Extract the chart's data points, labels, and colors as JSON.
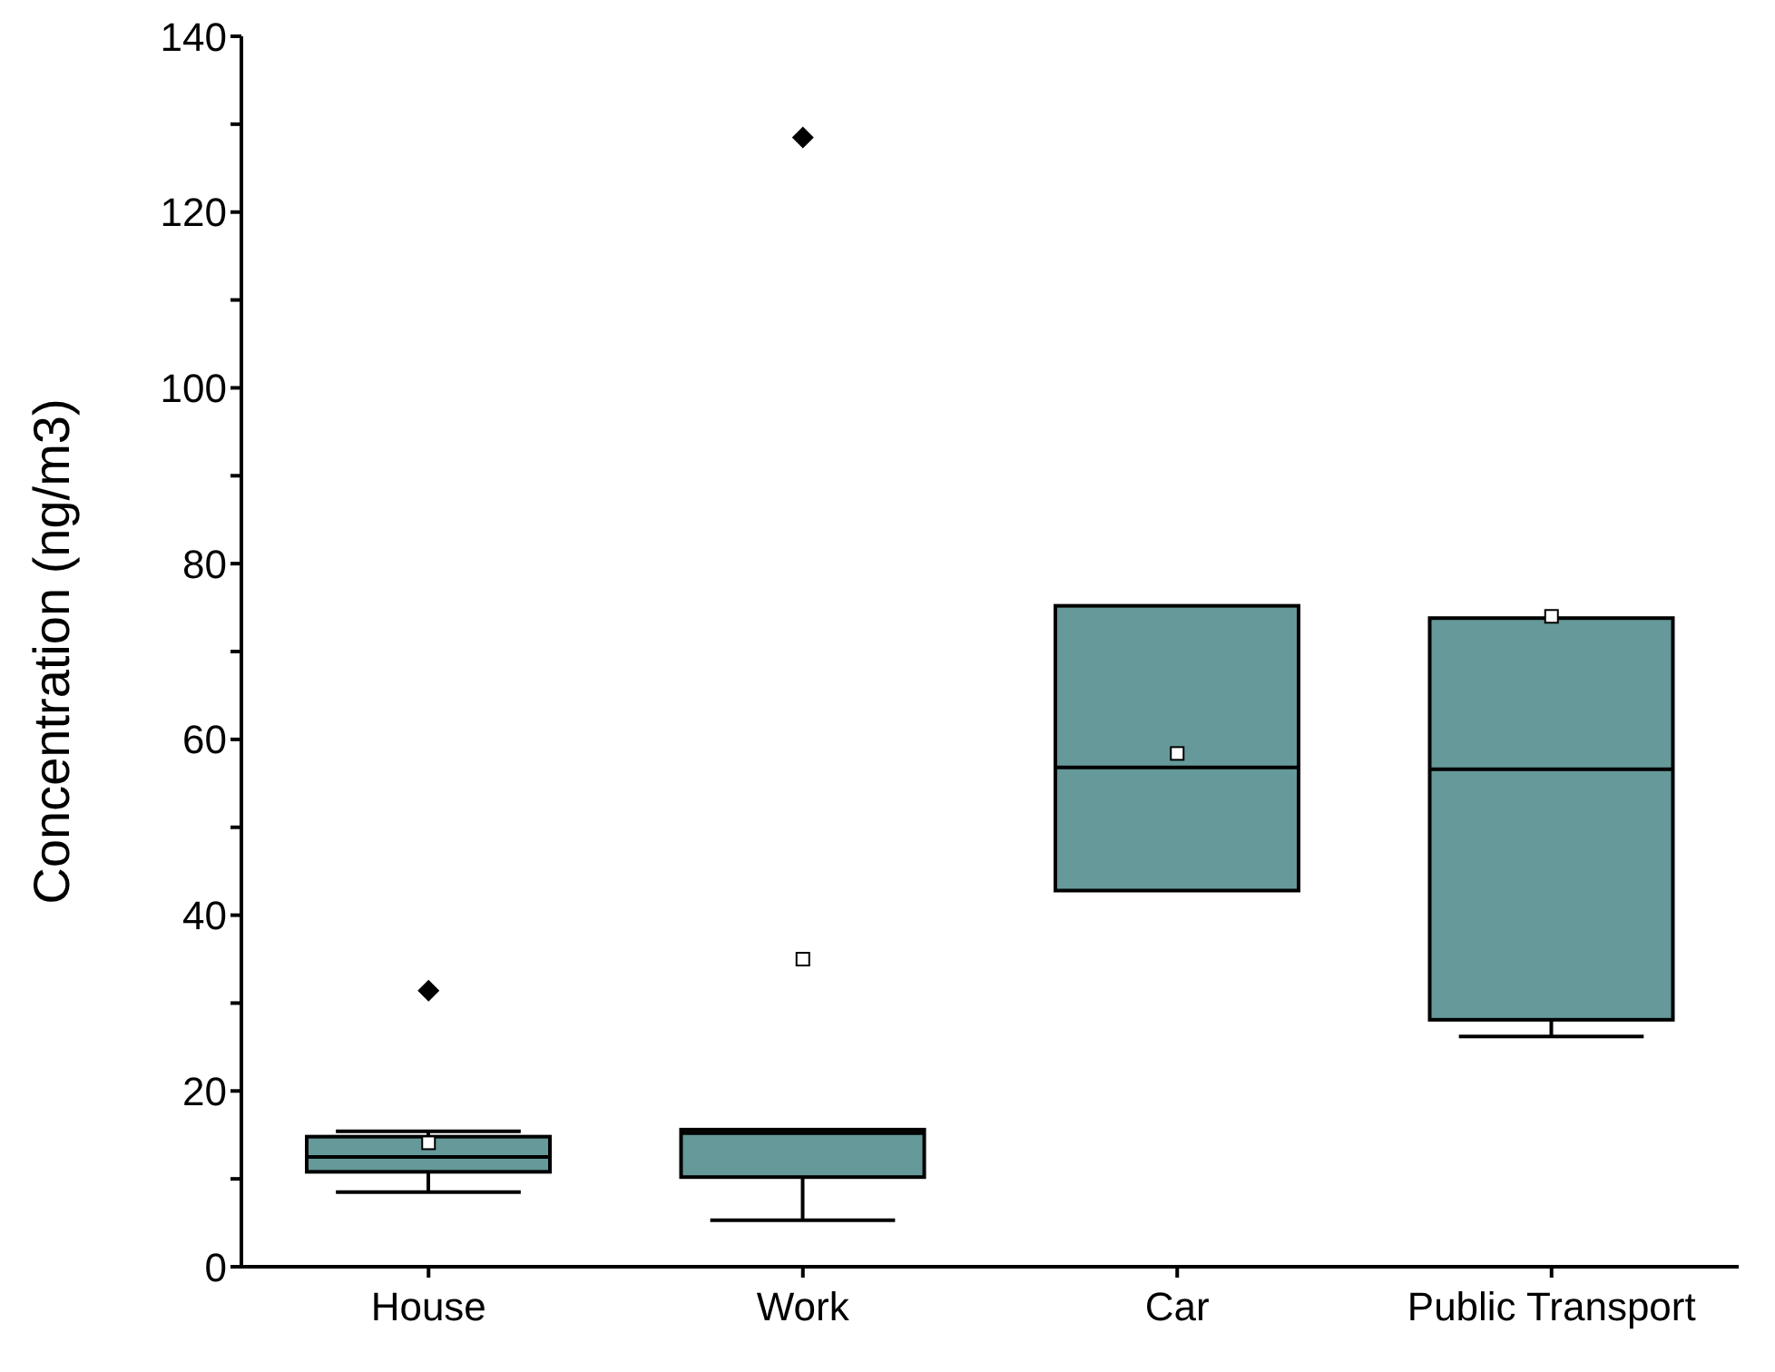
{
  "chart_data": {
    "type": "box",
    "ylabel": "Concentration (ng/m3)",
    "categories": [
      "House",
      "Work",
      "Car",
      "Public Transport"
    ],
    "ylim": [
      0,
      140
    ],
    "yticks": [
      0,
      {
        "value": 10,
        "label": null
      },
      20,
      {
        "value": 30,
        "label": null
      },
      40,
      {
        "value": 50,
        "label": null
      },
      60,
      {
        "value": 70,
        "label": null
      },
      80,
      {
        "value": 90,
        "label": null
      },
      100,
      {
        "value": 110,
        "label": null
      },
      120,
      {
        "value": 130,
        "label": null
      },
      140
    ],
    "grid": false,
    "legend": false,
    "color": "#669999",
    "boxes": [
      {
        "low": 8.5,
        "q1": 10.8,
        "median": 12.5,
        "q3": 14.8,
        "high": 15.4,
        "mean": 14.1,
        "outliers": [
          31.4
        ]
      },
      {
        "low": 5.3,
        "q1": 10.2,
        "median": 15.2,
        "q3": 15.6,
        "high": 15.6,
        "mean": 35.0,
        "outliers": [
          128.5
        ]
      },
      {
        "low": 42.8,
        "q1": 42.8,
        "median": 56.8,
        "q3": 75.2,
        "high": 75.2,
        "mean": 58.4
      },
      {
        "low": 26.2,
        "q1": 28.1,
        "median": 56.6,
        "q3": 73.8,
        "high": 73.8,
        "mean": 74.0
      }
    ]
  }
}
